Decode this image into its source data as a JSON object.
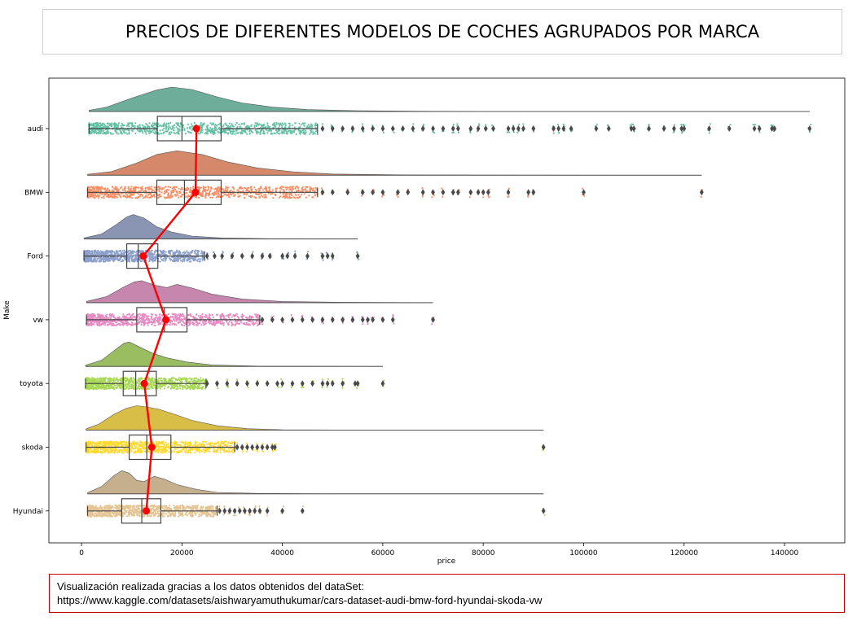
{
  "title": "PRECIOS DE DIFERENTES MODELOS DE COCHES AGRUPADOS POR MARCA",
  "source": {
    "line1": "Visualización realizada gracias a los datos obtenidos del dataSet:",
    "line2": "https://www.kaggle.com/datasets/aishwaryamuthukumar/cars-dataset-audi-bmw-ford-hyundai-skoda-vw"
  },
  "chart_data": {
    "type": "raincloud",
    "title": "",
    "xlabel": "price",
    "ylabel": "Make",
    "xlim": [
      -6500,
      152000
    ],
    "xticks": [
      0,
      20000,
      40000,
      60000,
      80000,
      100000,
      120000,
      140000
    ],
    "xtick_labels": [
      "0",
      "20000",
      "40000",
      "60000",
      "80000",
      "100000",
      "120000",
      "140000"
    ],
    "grid": false,
    "categories": [
      "audi",
      "BMW",
      "Ford",
      "vw",
      "toyota",
      "skoda",
      "Hyundai"
    ],
    "series": [
      {
        "name": "audi",
        "color": "#66c2a5",
        "box": {
          "whisker_low": 1500,
          "q1": 15100,
          "median": 20000,
          "q3": 27800,
          "whisker_high": 47000
        },
        "strip_range": [
          1500,
          47000
        ],
        "outliers": [
          48000,
          50000,
          52000,
          54000,
          56000,
          58000,
          60000,
          62000,
          64000,
          66000,
          68000,
          70000,
          72000,
          74000,
          75000,
          77500,
          79000,
          80500,
          82000,
          85000,
          86000,
          87000,
          88000,
          90000,
          94000,
          95000,
          96000,
          97500,
          102500,
          105000,
          109500,
          110000,
          113000,
          116000,
          118000,
          119500,
          120000,
          125000,
          129000,
          134000,
          135000,
          137500,
          138000,
          145000
        ],
        "mean": 22900,
        "density": [
          [
            1500,
            0.05
          ],
          [
            5000,
            0.18
          ],
          [
            10000,
            0.55
          ],
          [
            15000,
            0.88
          ],
          [
            18000,
            1.0
          ],
          [
            22000,
            0.9
          ],
          [
            27000,
            0.6
          ],
          [
            32000,
            0.35
          ],
          [
            38000,
            0.18
          ],
          [
            45000,
            0.08
          ],
          [
            55000,
            0.03
          ],
          [
            70000,
            0.01
          ],
          [
            90000,
            0.004
          ],
          [
            145000,
            0.0
          ]
        ]
      },
      {
        "name": "BMW",
        "color": "#fc8d62",
        "box": {
          "whisker_low": 1200,
          "q1": 15000,
          "median": 20500,
          "q3": 27800,
          "whisker_high": 47000
        },
        "strip_range": [
          1200,
          47000
        ],
        "outliers": [
          48000,
          50000,
          53000,
          56000,
          58000,
          60000,
          63000,
          65000,
          68000,
          70000,
          72000,
          74000,
          75000,
          77500,
          79000,
          80000,
          81000,
          85000,
          89000,
          90000,
          100000,
          123500
        ],
        "mean": 22700,
        "density": [
          [
            1200,
            0.04
          ],
          [
            6000,
            0.15
          ],
          [
            11000,
            0.5
          ],
          [
            15000,
            0.85
          ],
          [
            19000,
            1.0
          ],
          [
            24000,
            0.85
          ],
          [
            29000,
            0.55
          ],
          [
            35000,
            0.3
          ],
          [
            42000,
            0.14
          ],
          [
            50000,
            0.05
          ],
          [
            65000,
            0.015
          ],
          [
            90000,
            0.004
          ],
          [
            123500,
            0.0
          ]
        ]
      },
      {
        "name": "Ford",
        "color": "#8da0cb",
        "box": {
          "whisker_low": 500,
          "q1": 9000,
          "median": 11300,
          "q3": 15200,
          "whisker_high": 24500
        },
        "strip_range": [
          500,
          24500
        ],
        "outliers": [
          25000,
          26500,
          28000,
          30000,
          32000,
          34000,
          36000,
          37500,
          40000,
          41000,
          42500,
          45000,
          48000,
          49000,
          50000,
          55000
        ],
        "mean": 12300,
        "density": [
          [
            500,
            0.04
          ],
          [
            4000,
            0.2
          ],
          [
            7000,
            0.6
          ],
          [
            9000,
            0.9
          ],
          [
            10300,
            1.0
          ],
          [
            12500,
            0.85
          ],
          [
            15000,
            0.5
          ],
          [
            18000,
            0.28
          ],
          [
            22000,
            0.12
          ],
          [
            28000,
            0.04
          ],
          [
            38000,
            0.01
          ],
          [
            55000,
            0.0
          ]
        ]
      },
      {
        "name": "vw",
        "color": "#e78ac3",
        "box": {
          "whisker_low": 1000,
          "q1": 11000,
          "median": 16500,
          "q3": 21000,
          "whisker_high": 35500
        },
        "strip_range": [
          1000,
          35500
        ],
        "outliers": [
          36000,
          38000,
          40000,
          42000,
          44000,
          46000,
          48000,
          50000,
          52000,
          54000,
          56000,
          57000,
          58000,
          60000,
          62000,
          70000
        ],
        "mean": 16800,
        "density": [
          [
            1000,
            0.05
          ],
          [
            5000,
            0.25
          ],
          [
            8500,
            0.65
          ],
          [
            10500,
            0.85
          ],
          [
            12000,
            0.9
          ],
          [
            14500,
            0.72
          ],
          [
            17000,
            0.62
          ],
          [
            19000,
            0.75
          ],
          [
            22000,
            0.6
          ],
          [
            26000,
            0.35
          ],
          [
            32000,
            0.15
          ],
          [
            40000,
            0.05
          ],
          [
            52000,
            0.015
          ],
          [
            70000,
            0.0
          ]
        ]
      },
      {
        "name": "toyota",
        "color": "#a6d854",
        "box": {
          "whisker_low": 800,
          "q1": 8300,
          "median": 10800,
          "q3": 14900,
          "whisker_high": 24800
        },
        "strip_range": [
          800,
          24800
        ],
        "outliers": [
          25000,
          27000,
          29000,
          31000,
          33000,
          35000,
          37000,
          39000,
          40000,
          42000,
          44000,
          46000,
          48000,
          49000,
          50000,
          52000,
          54500,
          55000,
          60000
        ],
        "mean": 12500,
        "density": [
          [
            800,
            0.05
          ],
          [
            4000,
            0.25
          ],
          [
            6500,
            0.65
          ],
          [
            8500,
            0.95
          ],
          [
            9500,
            1.0
          ],
          [
            11500,
            0.8
          ],
          [
            14000,
            0.55
          ],
          [
            17000,
            0.35
          ],
          [
            21000,
            0.18
          ],
          [
            26000,
            0.06
          ],
          [
            35000,
            0.015
          ],
          [
            60000,
            0.0
          ]
        ]
      },
      {
        "name": "skoda",
        "color": "#ffd92f",
        "box": {
          "whisker_low": 900,
          "q1": 9500,
          "median": 13000,
          "q3": 17800,
          "whisker_high": 30500
        },
        "strip_range": [
          900,
          30500
        ],
        "outliers": [
          31000,
          32000,
          33000,
          34000,
          35000,
          36000,
          37000,
          38000,
          38500,
          92000
        ],
        "mean": 14000,
        "density": [
          [
            900,
            0.05
          ],
          [
            3500,
            0.25
          ],
          [
            6500,
            0.65
          ],
          [
            9000,
            0.9
          ],
          [
            11000,
            1.0
          ],
          [
            13000,
            0.95
          ],
          [
            15500,
            0.85
          ],
          [
            18500,
            0.65
          ],
          [
            22000,
            0.4
          ],
          [
            27000,
            0.18
          ],
          [
            33000,
            0.06
          ],
          [
            40000,
            0.015
          ],
          [
            60000,
            0.0
          ],
          [
            92000,
            0.0
          ]
        ]
      },
      {
        "name": "Hyundai",
        "color": "#e5c494",
        "box": {
          "whisker_low": 1200,
          "q1": 8000,
          "median": 12000,
          "q3": 15800,
          "whisker_high": 27000
        },
        "strip_range": [
          1200,
          27000
        ],
        "outliers": [
          27500,
          28500,
          29500,
          30500,
          31500,
          32500,
          33500,
          34500,
          35500,
          37000,
          40000,
          44000,
          92000
        ],
        "mean": 12900,
        "density": [
          [
            1200,
            0.05
          ],
          [
            4000,
            0.3
          ],
          [
            6500,
            0.75
          ],
          [
            8000,
            0.95
          ],
          [
            9500,
            0.85
          ],
          [
            11000,
            0.55
          ],
          [
            12500,
            0.5
          ],
          [
            14500,
            0.72
          ],
          [
            16500,
            0.6
          ],
          [
            19000,
            0.38
          ],
          [
            23000,
            0.18
          ],
          [
            27000,
            0.06
          ],
          [
            35000,
            0.02
          ],
          [
            50000,
            0.0
          ],
          [
            92000,
            0.0
          ]
        ]
      }
    ],
    "mean_line_color": "#ff0000"
  }
}
